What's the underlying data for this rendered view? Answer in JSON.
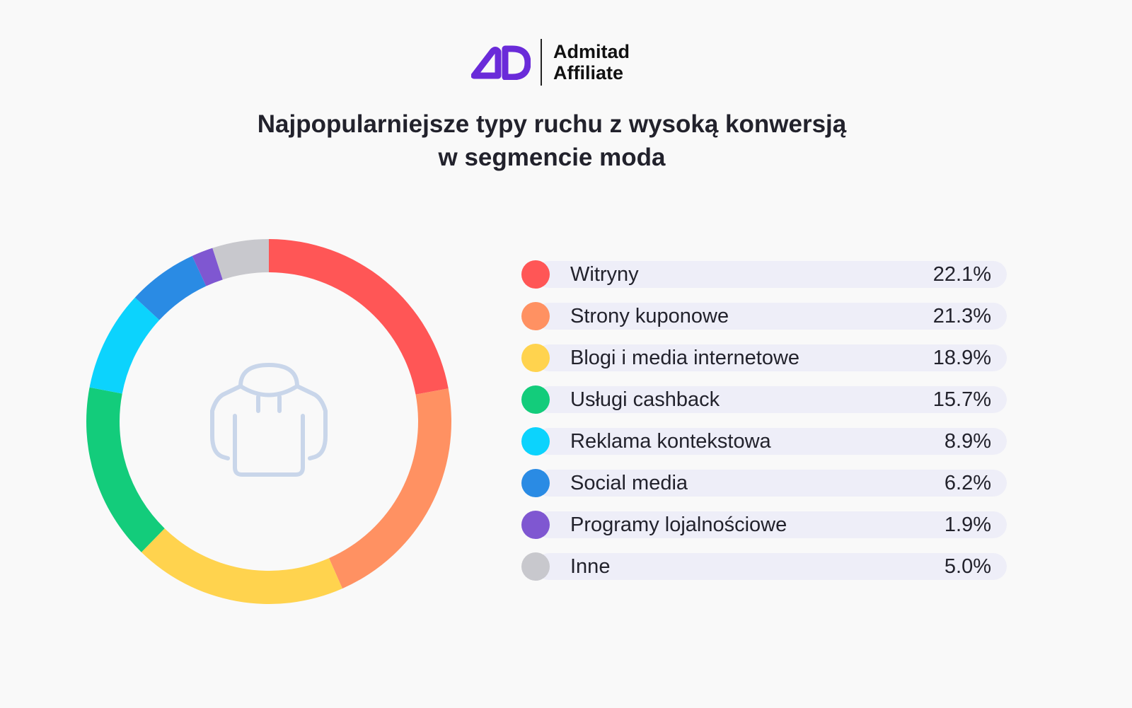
{
  "brand": {
    "line1": "Admitad",
    "line2": "Affiliate",
    "logo_mark": "AD",
    "accent": "#6A2BD9"
  },
  "chart_data": {
    "type": "pie",
    "variant": "donut",
    "title_line1": "Najpopularniejsze typy ruchu z wysoką konwersją",
    "title_line2": "w segmencie moda",
    "center_icon": "hoodie-icon",
    "categories": [
      "Witryny",
      "Strony kuponowe",
      "Blogi i media internetowe",
      "Usługi cashback",
      "Reklama kontekstowa",
      "Social media",
      "Programy lojalnościowe",
      "Inne"
    ],
    "values": [
      22.1,
      21.3,
      18.9,
      15.7,
      8.9,
      6.2,
      1.9,
      5.0
    ],
    "labels": [
      "22.1%",
      "21.3%",
      "18.9%",
      "15.7%",
      "8.9%",
      "6.2%",
      "1.9%",
      "5.0%"
    ],
    "colors": [
      "#FF5656",
      "#FF9162",
      "#FFD34E",
      "#13CC7B",
      "#0CD3FD",
      "#2A8BE4",
      "#7F57D1",
      "#C8C8CD"
    ],
    "unit": "%",
    "legend_position": "right"
  }
}
